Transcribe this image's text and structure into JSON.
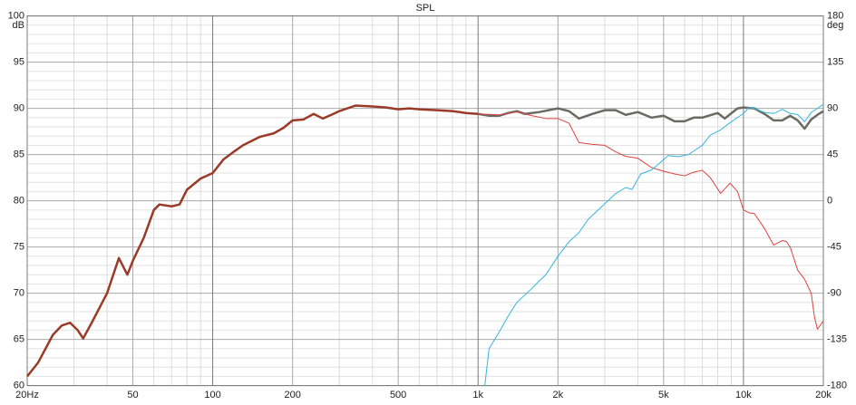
{
  "chart_data": {
    "type": "line",
    "title": "SPL",
    "ylabel": "dB",
    "y2label": "deg",
    "xscale": "log",
    "xlim": [
      20,
      20000
    ],
    "ylim": [
      60,
      100
    ],
    "y2lim": [
      -180,
      180
    ],
    "xticks": [
      {
        "value": 20,
        "label": "20Hz"
      },
      50,
      100,
      200,
      500,
      {
        "value": 1000,
        "label": "1k"
      },
      {
        "value": 2000,
        "label": "2k"
      },
      {
        "value": 5000,
        "label": "5k"
      },
      {
        "value": 10000,
        "label": "10k"
      },
      {
        "value": 20000,
        "label": "20k"
      }
    ],
    "xminor": [
      30,
      40,
      60,
      70,
      80,
      90,
      300,
      400,
      600,
      700,
      800,
      900,
      3000,
      4000,
      6000,
      7000,
      8000,
      9000
    ],
    "yticks": [
      60,
      65,
      70,
      75,
      80,
      85,
      90,
      95,
      100
    ],
    "yminor": [
      61,
      62,
      63,
      64,
      66,
      67,
      68,
      69,
      71,
      72,
      73,
      74,
      76,
      77,
      78,
      79,
      81,
      82,
      83,
      84,
      86,
      87,
      88,
      89,
      91,
      92,
      93,
      94,
      96,
      97,
      98,
      99
    ],
    "y2ticks": [
      -180,
      -135,
      -90,
      -45,
      0,
      45,
      90,
      135,
      180
    ],
    "grid": true,
    "series": [
      {
        "color": "#6b6b63",
        "width": 2.5,
        "x": [
          1000,
          1100,
          1200,
          1300,
          1400,
          1500,
          1700,
          2000,
          2200,
          2400,
          2700,
          3000,
          3300,
          3600,
          4000,
          4500,
          5000,
          5500,
          6000,
          6500,
          7000,
          8000,
          8500,
          9500,
          10000,
          11000,
          12000,
          13000,
          14000,
          15000,
          16000,
          17000,
          18000,
          19000,
          20000
        ],
        "values": [
          89.4,
          89.2,
          89.2,
          89.5,
          89.7,
          89.4,
          89.6,
          90.0,
          89.7,
          88.9,
          89.4,
          89.8,
          89.8,
          89.3,
          89.6,
          89.0,
          89.2,
          88.6,
          88.6,
          89.0,
          89.0,
          89.5,
          88.9,
          90.0,
          90.1,
          90.0,
          89.4,
          88.7,
          88.7,
          89.2,
          88.7,
          87.8,
          88.8,
          89.3,
          89.7
        ]
      },
      {
        "color": "#e04040",
        "width": 1,
        "x": [
          1000,
          1200,
          1400,
          1600,
          1800,
          2000,
          2200,
          2400,
          2700,
          3000,
          3300,
          3600,
          4000,
          4500,
          5000,
          5500,
          6000,
          6500,
          7000,
          7500,
          8200,
          8900,
          9500,
          10000,
          10500,
          11000,
          12000,
          13000,
          14000,
          14500,
          15000,
          16000,
          17000,
          18000,
          18500,
          19000,
          20000
        ],
        "values": [
          89.4,
          89.3,
          89.6,
          89.2,
          88.9,
          88.9,
          88.4,
          86.3,
          86.1,
          86.0,
          85.3,
          84.8,
          84.6,
          83.6,
          83.2,
          82.9,
          82.7,
          83.1,
          83.3,
          82.5,
          80.8,
          81.9,
          81.0,
          79.0,
          78.7,
          78.6,
          77.0,
          75.2,
          75.7,
          75.6,
          75.0,
          72.5,
          71.5,
          70.0,
          67.5,
          66.1,
          67.0
        ]
      },
      {
        "color": "#9a3a28",
        "width": 2.5,
        "x": [
          20,
          22,
          25,
          27,
          29,
          31,
          32.5,
          35,
          40,
          44.3,
          47.7,
          50,
          55,
          60,
          63,
          70,
          75,
          80,
          90,
          100,
          110,
          120,
          130,
          150,
          170,
          185,
          200,
          220,
          240,
          260,
          280,
          300,
          345,
          400,
          450,
          500,
          550,
          600,
          700,
          800,
          900,
          1000
        ],
        "values": [
          61.0,
          62.5,
          65.5,
          66.5,
          66.8,
          66.0,
          65.1,
          66.8,
          70.0,
          73.8,
          72.0,
          73.5,
          76.0,
          79.0,
          79.6,
          79.4,
          79.6,
          81.2,
          82.4,
          83.0,
          84.5,
          85.3,
          86.0,
          86.9,
          87.3,
          87.9,
          88.7,
          88.8,
          89.4,
          88.9,
          89.3,
          89.7,
          90.3,
          90.2,
          90.1,
          89.9,
          90.0,
          89.9,
          89.8,
          89.7,
          89.5,
          89.4
        ]
      },
      {
        "color": "#35b5e0",
        "width": 1,
        "axis": "y2",
        "x": [
          1060,
          1100,
          1200,
          1300,
          1400,
          1600,
          1700,
          1800,
          2000,
          2200,
          2400,
          2600,
          3000,
          3300,
          3600,
          3800,
          4100,
          4500,
          4800,
          5200,
          5700,
          6200,
          7000,
          7500,
          8200,
          9000,
          10000,
          10500,
          11000,
          12000,
          13000,
          14000,
          15000,
          16000,
          17000,
          18000,
          19000,
          20000
        ],
        "values": [
          -180,
          -144,
          -128,
          -112,
          -99,
          -85,
          -78,
          -72,
          -54,
          -40,
          -31,
          -18,
          -3,
          7,
          13,
          11,
          26,
          30,
          36,
          44,
          43,
          45,
          54,
          64,
          69,
          77,
          85,
          91,
          90,
          86,
          85,
          89,
          85,
          84,
          77,
          86,
          90,
          94
        ]
      }
    ]
  }
}
